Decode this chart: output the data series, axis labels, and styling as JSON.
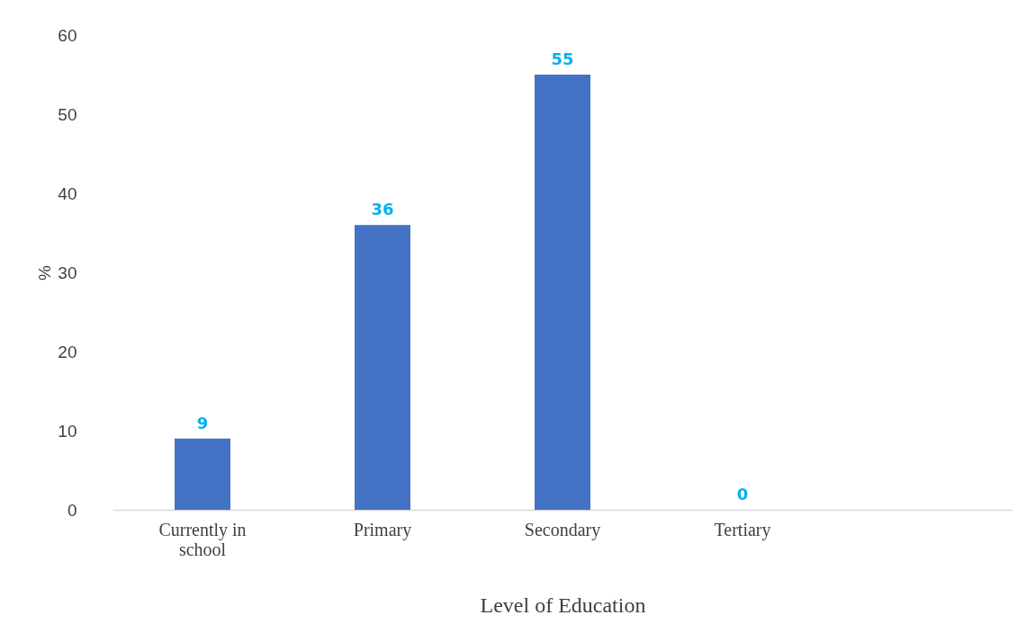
{
  "chart_data": {
    "type": "bar",
    "xlabel": "Level of Education",
    "ylabel": "%",
    "categories": [
      "Currently in school",
      "Primary",
      "Secondary",
      "Tertiary",
      null
    ],
    "values": [
      9,
      36,
      55,
      0,
      null
    ],
    "color": "#4472c4",
    "ylim": [
      0,
      60
    ],
    "yticks": [
      0,
      10,
      20,
      30,
      40,
      50,
      60
    ],
    "grid": false,
    "data_labels": true
  }
}
